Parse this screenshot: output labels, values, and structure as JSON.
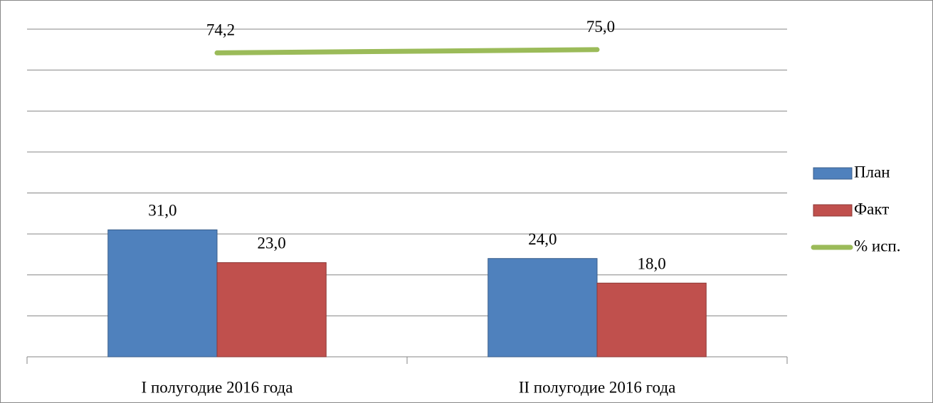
{
  "chart_data": {
    "type": "bar_line",
    "categories": [
      "I полугодие 2016 года",
      "II полугодие 2016 года"
    ],
    "series": [
      {
        "name": "План",
        "color": "#4f81bd",
        "type": "bar",
        "values": [
          31,
          24
        ],
        "value_labels": [
          "31,0",
          "24,0"
        ]
      },
      {
        "name": "Факт",
        "color": "#c0504d",
        "type": "bar",
        "values": [
          23,
          18
        ],
        "value_labels": [
          "23,0",
          "18,0"
        ]
      },
      {
        "name": "% исп.",
        "color": "#9bbb59",
        "type": "line",
        "values": [
          74.2,
          75.0
        ],
        "value_labels": [
          "74,2",
          "75,0"
        ]
      }
    ],
    "ylim": [
      0,
      80
    ],
    "yticks": [
      0,
      10,
      20,
      30,
      40,
      50,
      60,
      70,
      80
    ],
    "grid": true,
    "tick_labels": false,
    "legend": "right"
  }
}
